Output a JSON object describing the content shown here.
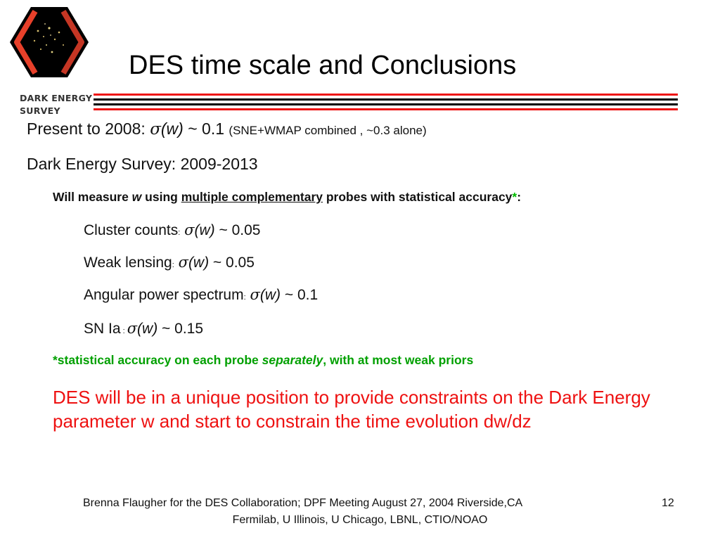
{
  "logo": {
    "icon": "des-hexagon-galaxy-logo",
    "line1": "DARK ENERGY",
    "line2": "SURVEY"
  },
  "title": "DES time scale and Conclusions",
  "colors": {
    "rule_red": "#ee1111",
    "rule_black": "#000000",
    "accent_green": "#00a000",
    "conclusion_red": "#ee1111"
  },
  "present": {
    "prefix": "Present to 2008:",
    "sigma": "σ",
    "w": "(w)",
    "value": " ~ 0.1 ",
    "note": "(SNE+WMAP  combined , ~0.3 alone)"
  },
  "survey": "Dark Energy Survey: 2009-2013",
  "measure": {
    "a": "Will measure ",
    "w": "w",
    "b": " using ",
    "underlined": "multiple complementary",
    "c": " probes with statistical accuracy",
    "star": "*",
    "colon": ":"
  },
  "probes": [
    {
      "name": "Cluster counts",
      "sep": ":",
      "sigma": "σ",
      "w": "(w)",
      "value": " ~ 0.05"
    },
    {
      "name": "Weak lensing",
      "sep": ":",
      "sigma": "σ",
      "w": "(w)",
      "value": " ~ 0.05"
    },
    {
      "name": "Angular power spectrum",
      "sep": ":",
      "sigma": "σ",
      "w": "(w)",
      "value": " ~ 0.1"
    },
    {
      "name": "SN Ia",
      "sep": " : ",
      "sigma": "σ",
      "w": "(w)",
      "value": " ~ 0.15"
    }
  ],
  "note": {
    "a": "*statistical accuracy on each probe ",
    "it": "separately",
    "b": ", with at most weak priors"
  },
  "conclusion": "DES will be in a unique position to provide constraints on the Dark Energy parameter w and start to constrain the time evolution dw/dz",
  "footer": {
    "line1": "Brenna Flaugher for the DES Collaboration;   DPF Meeting August 27, 2004 Riverside,CA",
    "page": "12",
    "line2": "Fermilab, U Illinois, U Chicago, LBNL, CTIO/NOAO"
  }
}
